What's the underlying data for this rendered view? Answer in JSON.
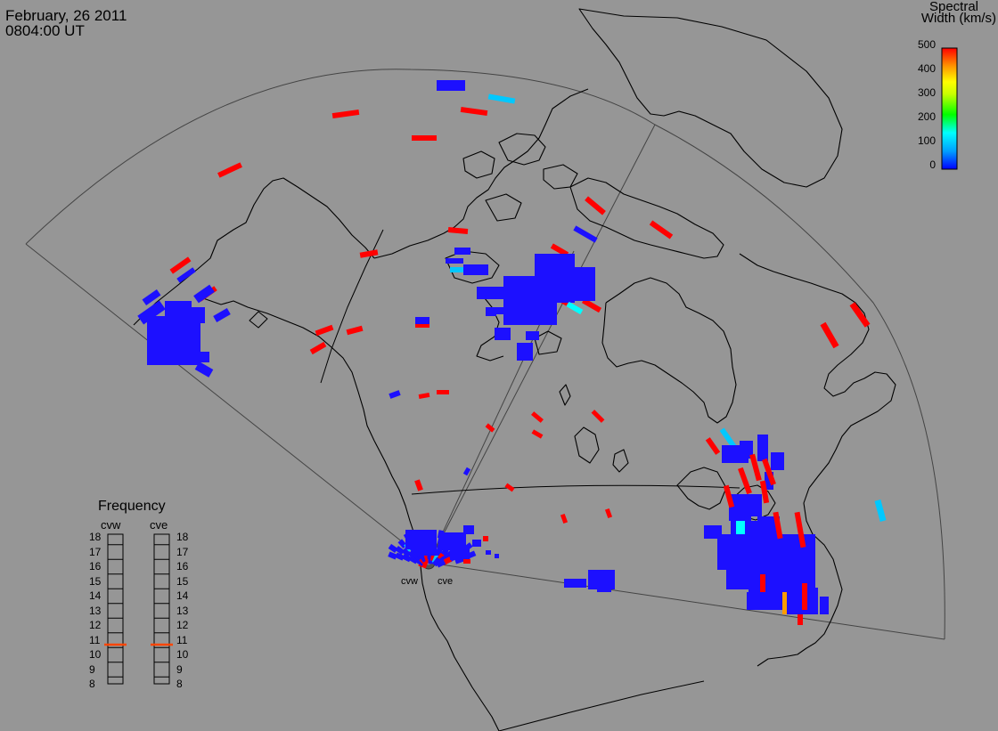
{
  "header": {
    "date": "February, 26 2011",
    "time": "0804:00 UT"
  },
  "colorbar": {
    "title_line1": "Spectral",
    "title_line2": "Width (km/s)",
    "ticks": [
      "500",
      "400",
      "300",
      "200",
      "100",
      "0"
    ],
    "range": [
      0,
      500
    ],
    "stops": [
      "#0000ff",
      "#00a0ff",
      "#00ffff",
      "#00ff00",
      "#c8ff00",
      "#ffff00",
      "#ff9600",
      "#ff0000"
    ]
  },
  "frequency_panel": {
    "title": "Frequency",
    "radars": [
      {
        "name": "cvw",
        "frequency": 10.8,
        "indicator_color": "#ff4500"
      },
      {
        "name": "cve",
        "frequency": 10.8,
        "indicator_color": "#ff4500"
      }
    ],
    "levels": [
      "18",
      "17",
      "16",
      "15",
      "14",
      "13",
      "12",
      "11",
      "10",
      "9",
      "8"
    ]
  },
  "site_labels": {
    "west": "cvw",
    "east": "cve"
  },
  "palette": {
    "background": "#969696",
    "coast": "#000000",
    "fov": "#3c3c3c",
    "high": "#ff0000",
    "low": "#1c10ff",
    "mid": "#00c8ff",
    "orange": "#ff9b00"
  }
}
